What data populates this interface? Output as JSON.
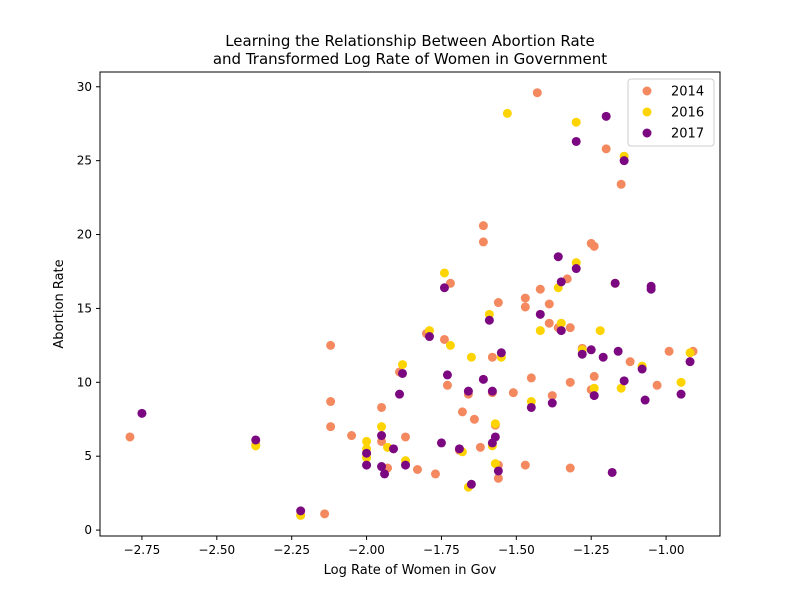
{
  "chart_data": {
    "type": "scatter",
    "title": "Learning the Relationship Between Abortion Rate\nand Transformed Log Rate of Women in Government",
    "xlabel": "Log Rate of Women in Gov",
    "ylabel": "Abortion Rate",
    "xlim": [
      -2.89,
      -0.82
    ],
    "ylim": [
      -0.4,
      31.0
    ],
    "xticks": [
      -2.75,
      -2.5,
      -2.25,
      -2.0,
      -1.75,
      -1.5,
      -1.25,
      -1.0
    ],
    "xtick_labels": [
      "−2.75",
      "−2.50",
      "−2.25",
      "−2.00",
      "−1.75",
      "−1.50",
      "−1.25",
      "−1.00"
    ],
    "yticks": [
      0,
      5,
      10,
      15,
      20,
      25,
      30
    ],
    "ytick_labels": [
      "0",
      "5",
      "10",
      "15",
      "20",
      "25",
      "30"
    ],
    "grid": false,
    "legend_position": "top-right",
    "series": [
      {
        "name": "2014",
        "color": "#f4895f",
        "points": [
          [
            -2.79,
            6.3
          ],
          [
            -2.37,
            5.8
          ],
          [
            -2.22,
            1.0
          ],
          [
            -2.14,
            1.1
          ],
          [
            -2.12,
            12.5
          ],
          [
            -2.12,
            8.7
          ],
          [
            -2.12,
            7.0
          ],
          [
            -2.05,
            6.4
          ],
          [
            -2.0,
            5.2
          ],
          [
            -1.95,
            8.3
          ],
          [
            -1.95,
            6.0
          ],
          [
            -1.93,
            4.2
          ],
          [
            -1.89,
            10.7
          ],
          [
            -1.87,
            6.3
          ],
          [
            -1.83,
            4.1
          ],
          [
            -1.8,
            13.3
          ],
          [
            -1.77,
            3.8
          ],
          [
            -1.74,
            12.9
          ],
          [
            -1.73,
            9.8
          ],
          [
            -1.72,
            16.7
          ],
          [
            -1.69,
            5.4
          ],
          [
            -1.68,
            8.0
          ],
          [
            -1.66,
            9.2
          ],
          [
            -1.64,
            7.5
          ],
          [
            -1.62,
            5.6
          ],
          [
            -1.61,
            20.6
          ],
          [
            -1.61,
            19.5
          ],
          [
            -1.58,
            11.7
          ],
          [
            -1.58,
            9.3
          ],
          [
            -1.57,
            7.1
          ],
          [
            -1.56,
            15.4
          ],
          [
            -1.56,
            4.4
          ],
          [
            -1.56,
            3.5
          ],
          [
            -1.51,
            9.3
          ],
          [
            -1.47,
            15.7
          ],
          [
            -1.47,
            15.1
          ],
          [
            -1.47,
            4.4
          ],
          [
            -1.45,
            10.3
          ],
          [
            -1.43,
            29.6
          ],
          [
            -1.42,
            16.3
          ],
          [
            -1.39,
            14.0
          ],
          [
            -1.39,
            15.3
          ],
          [
            -1.38,
            9.1
          ],
          [
            -1.36,
            13.7
          ],
          [
            -1.33,
            17.0
          ],
          [
            -1.32,
            13.7
          ],
          [
            -1.32,
            10.0
          ],
          [
            -1.32,
            4.2
          ],
          [
            -1.28,
            12.3
          ],
          [
            -1.25,
            19.4
          ],
          [
            -1.24,
            19.2
          ],
          [
            -1.24,
            10.4
          ],
          [
            -1.2,
            25.8
          ],
          [
            -1.15,
            23.4
          ],
          [
            -1.12,
            11.4
          ],
          [
            -1.03,
            9.8
          ],
          [
            -0.99,
            12.1
          ],
          [
            -0.91,
            12.1
          ],
          [
            -1.25,
            9.5
          ]
        ]
      },
      {
        "name": "2016",
        "color": "#fdd400",
        "points": [
          [
            -2.37,
            5.7
          ],
          [
            -2.22,
            1.0
          ],
          [
            -2.0,
            5.5
          ],
          [
            -2.0,
            6.0
          ],
          [
            -2.0,
            4.9
          ],
          [
            -1.95,
            7.0
          ],
          [
            -1.93,
            5.6
          ],
          [
            -1.88,
            11.2
          ],
          [
            -1.87,
            4.7
          ],
          [
            -1.79,
            13.5
          ],
          [
            -1.74,
            17.4
          ],
          [
            -1.72,
            12.5
          ],
          [
            -1.68,
            5.3
          ],
          [
            -1.66,
            2.9
          ],
          [
            -1.65,
            11.7
          ],
          [
            -1.59,
            14.6
          ],
          [
            -1.58,
            5.7
          ],
          [
            -1.57,
            7.2
          ],
          [
            -1.57,
            4.5
          ],
          [
            -1.55,
            11.7
          ],
          [
            -1.53,
            28.2
          ],
          [
            -1.45,
            8.7
          ],
          [
            -1.42,
            13.5
          ],
          [
            -1.36,
            16.4
          ],
          [
            -1.35,
            14.0
          ],
          [
            -1.3,
            18.1
          ],
          [
            -1.3,
            27.6
          ],
          [
            -1.28,
            12.2
          ],
          [
            -1.24,
            9.6
          ],
          [
            -1.22,
            13.5
          ],
          [
            -1.17,
            16.7
          ],
          [
            -1.15,
            9.6
          ],
          [
            -1.14,
            25.3
          ],
          [
            -1.08,
            11.1
          ],
          [
            -0.95,
            10.0
          ],
          [
            -0.92,
            12.0
          ]
        ]
      },
      {
        "name": "2017",
        "color": "#7b0880",
        "points": [
          [
            -2.75,
            7.9
          ],
          [
            -2.37,
            6.1
          ],
          [
            -2.22,
            1.3
          ],
          [
            -2.0,
            5.2
          ],
          [
            -2.0,
            4.4
          ],
          [
            -1.95,
            6.4
          ],
          [
            -1.95,
            4.3
          ],
          [
            -1.94,
            3.8
          ],
          [
            -1.91,
            5.5
          ],
          [
            -1.89,
            9.2
          ],
          [
            -1.88,
            10.6
          ],
          [
            -1.87,
            4.4
          ],
          [
            -1.79,
            13.1
          ],
          [
            -1.75,
            5.9
          ],
          [
            -1.74,
            16.4
          ],
          [
            -1.73,
            10.5
          ],
          [
            -1.69,
            5.5
          ],
          [
            -1.66,
            9.4
          ],
          [
            -1.65,
            3.1
          ],
          [
            -1.61,
            10.2
          ],
          [
            -1.59,
            14.2
          ],
          [
            -1.58,
            9.4
          ],
          [
            -1.58,
            5.9
          ],
          [
            -1.57,
            6.3
          ],
          [
            -1.56,
            4.0
          ],
          [
            -1.55,
            12.0
          ],
          [
            -1.45,
            8.3
          ],
          [
            -1.42,
            14.6
          ],
          [
            -1.38,
            8.6
          ],
          [
            -1.36,
            18.5
          ],
          [
            -1.35,
            16.8
          ],
          [
            -1.35,
            13.5
          ],
          [
            -1.3,
            26.3
          ],
          [
            -1.3,
            17.7
          ],
          [
            -1.28,
            11.9
          ],
          [
            -1.25,
            12.2
          ],
          [
            -1.24,
            9.1
          ],
          [
            -1.21,
            11.7
          ],
          [
            -1.2,
            28.0
          ],
          [
            -1.18,
            3.9
          ],
          [
            -1.17,
            16.7
          ],
          [
            -1.16,
            12.1
          ],
          [
            -1.14,
            10.1
          ],
          [
            -1.14,
            25.0
          ],
          [
            -1.08,
            10.9
          ],
          [
            -1.07,
            8.8
          ],
          [
            -1.05,
            16.5
          ],
          [
            -1.05,
            16.3
          ],
          [
            -0.95,
            9.2
          ],
          [
            -0.92,
            11.4
          ]
        ]
      }
    ]
  }
}
